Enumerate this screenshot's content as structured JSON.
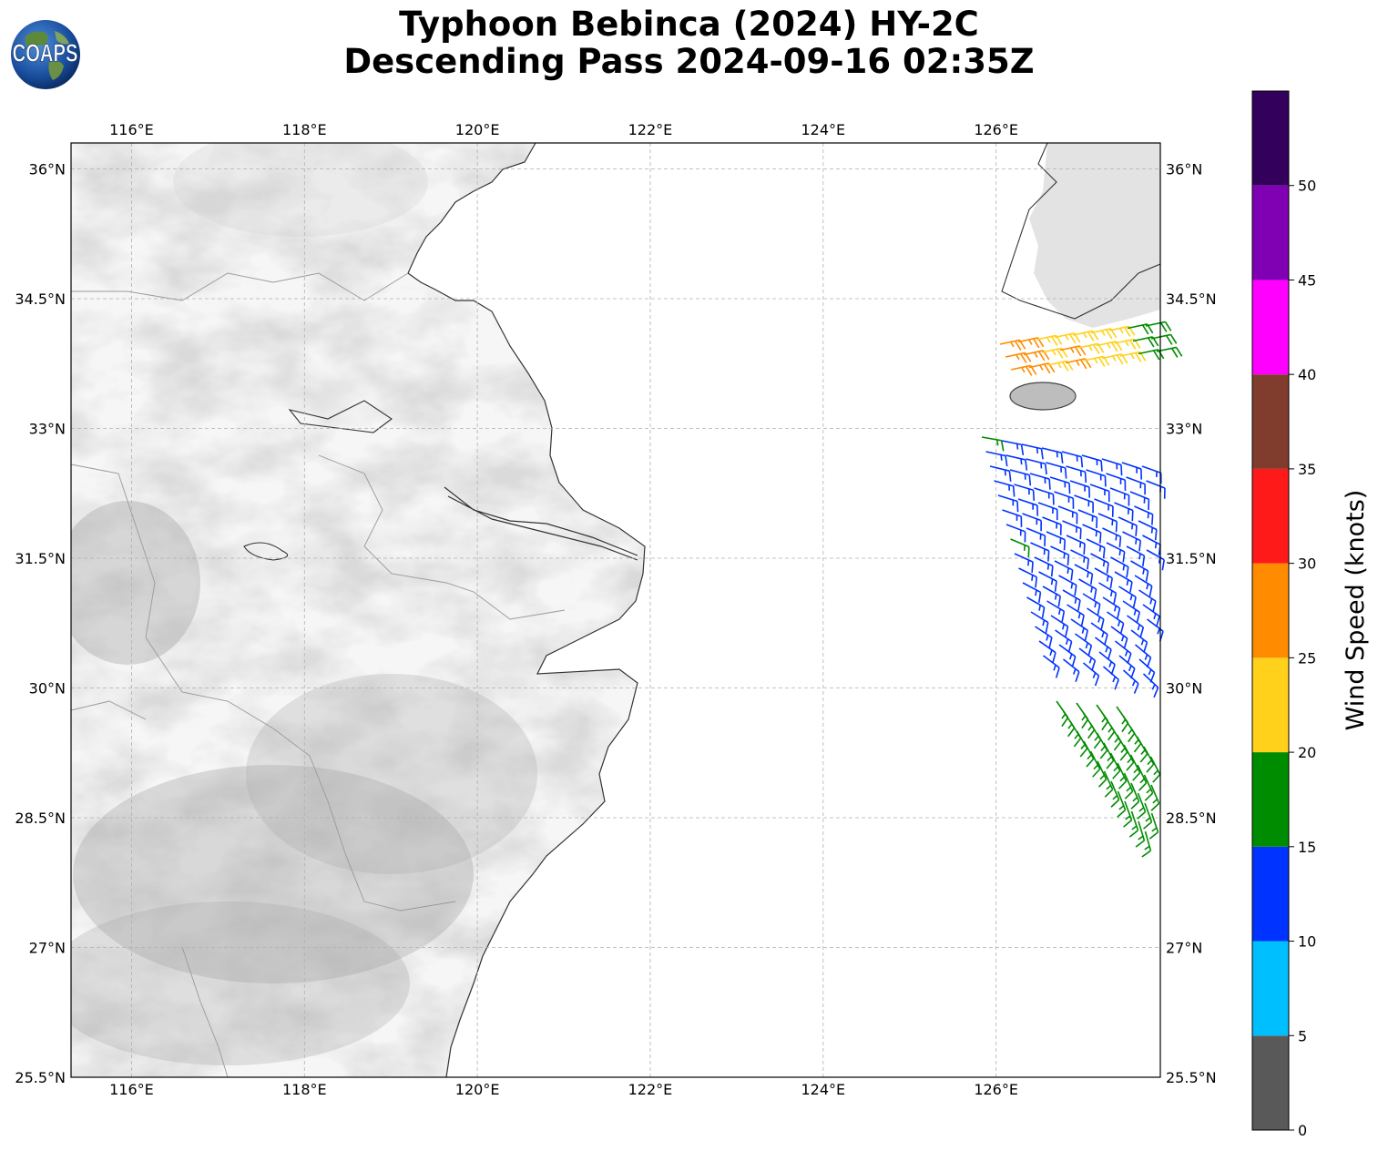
{
  "title": {
    "line1": "Typhoon Bebinca (2024) HY-2C",
    "line2": "Descending Pass 2024-09-16 02:35Z"
  },
  "logo": {
    "text": "COAPS",
    "icon": "globe-logo-icon"
  },
  "map": {
    "lon_range": [
      115.3,
      127.9
    ],
    "lat_range": [
      25.5,
      36.3
    ],
    "lon_ticks": [
      "116°E",
      "118°E",
      "120°E",
      "122°E",
      "124°E",
      "126°E"
    ],
    "lat_ticks": [
      "36°N",
      "34.5°N",
      "33°N",
      "31.5°N",
      "30°N",
      "28.5°N",
      "27°N",
      "25.5°N"
    ],
    "gridlines": true,
    "background": "grayscale topography"
  },
  "colorbar": {
    "label": "Wind Speed (knots)",
    "ticks": [
      "0",
      "5",
      "10",
      "15",
      "20",
      "25",
      "30",
      "35",
      "40",
      "45",
      "50"
    ],
    "bins": [
      {
        "range": [
          0,
          5
        ],
        "color": "#595959"
      },
      {
        "range": [
          5,
          10
        ],
        "color": "#00bfff"
      },
      {
        "range": [
          10,
          15
        ],
        "color": "#0033ff"
      },
      {
        "range": [
          15,
          20
        ],
        "color": "#008c00"
      },
      {
        "range": [
          20,
          25
        ],
        "color": "#ffd11a"
      },
      {
        "range": [
          25,
          30
        ],
        "color": "#ff8c00"
      },
      {
        "range": [
          30,
          35
        ],
        "color": "#ff1a1a"
      },
      {
        "range": [
          35,
          40
        ],
        "color": "#803d2e"
      },
      {
        "range": [
          40,
          45
        ],
        "color": "#ff00ff"
      },
      {
        "range": [
          45,
          50
        ],
        "color": "#8000b3"
      },
      {
        "range": [
          50,
          55
        ],
        "color": "#33005c"
      }
    ]
  },
  "wind_barbs": {
    "direction_description": "southwesterly to westerly flow around typhoon periphery",
    "zones": [
      {
        "name": "north-orange",
        "speed_kt": 27,
        "color": "#ff8c00"
      },
      {
        "name": "north-yellow",
        "speed_kt": 22,
        "color": "#ffd11a"
      },
      {
        "name": "north-green",
        "speed_kt": 17,
        "color": "#008c00"
      },
      {
        "name": "central-blue",
        "speed_kt": 12,
        "color": "#0033ff"
      },
      {
        "name": "south-green",
        "speed_kt": 17,
        "color": "#008c00"
      }
    ]
  }
}
